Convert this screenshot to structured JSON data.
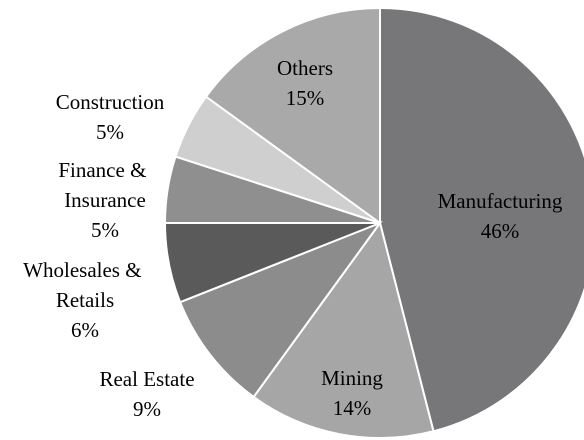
{
  "chart_data": {
    "type": "pie",
    "categories": [
      "Manufacturing",
      "Mining",
      "Real Estate",
      "Wholesales & Retails",
      "Finance & Insurance",
      "Construction",
      "Others"
    ],
    "values": [
      46,
      14,
      9,
      6,
      5,
      5,
      15
    ],
    "value_labels": [
      "46%",
      "14%",
      "9%",
      "6%",
      "5%",
      "5%",
      "15%"
    ],
    "colors": [
      "#77777a",
      "#a6a6a6",
      "#8c8c8c",
      "#5a5a5a",
      "#8f8f8f",
      "#cfcfcf",
      "#a9a9a9"
    ]
  }
}
